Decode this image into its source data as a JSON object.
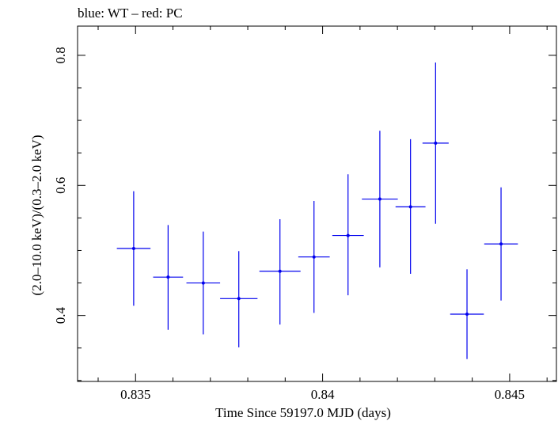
{
  "chart_data": {
    "type": "scatter",
    "title": "blue: WT – red: PC",
    "xlabel": "Time Since 59197.0 MJD (days)",
    "ylabel": "(2.0–10.0 keV)/(0.3–2.0 keV)",
    "xlim": [
      0.83345,
      0.84625
    ],
    "ylim": [
      0.2986,
      0.8449
    ],
    "x_ticks": [
      0.835,
      0.84,
      0.845
    ],
    "x_tick_labels": [
      "0.835",
      "0.84",
      "0.845"
    ],
    "x_minor_step": 0.001,
    "y_ticks": [
      0.4,
      0.6,
      0.8
    ],
    "y_tick_labels": [
      "0.4",
      "0.6",
      "0.8"
    ],
    "y_minor_step": 0.05,
    "grid": false,
    "series": [
      {
        "color": "#0000ee",
        "points": [
          {
            "x": 0.83495,
            "y": 0.503,
            "xerr": 0.00045,
            "ylo": 0.415,
            "yhi": 0.591
          },
          {
            "x": 0.83587,
            "y": 0.459,
            "xerr": 0.0004,
            "ylo": 0.378,
            "yhi": 0.539
          },
          {
            "x": 0.83681,
            "y": 0.45,
            "xerr": 0.00045,
            "ylo": 0.371,
            "yhi": 0.529
          },
          {
            "x": 0.83776,
            "y": 0.426,
            "xerr": 0.0005,
            "ylo": 0.351,
            "yhi": 0.499
          },
          {
            "x": 0.83886,
            "y": 0.468,
            "xerr": 0.00055,
            "ylo": 0.386,
            "yhi": 0.548
          },
          {
            "x": 0.83977,
            "y": 0.49,
            "xerr": 0.00042,
            "ylo": 0.404,
            "yhi": 0.576
          },
          {
            "x": 0.84068,
            "y": 0.523,
            "xerr": 0.00042,
            "ylo": 0.431,
            "yhi": 0.617
          },
          {
            "x": 0.84153,
            "y": 0.579,
            "xerr": 0.00048,
            "ylo": 0.474,
            "yhi": 0.684
          },
          {
            "x": 0.84235,
            "y": 0.567,
            "xerr": 0.0004,
            "ylo": 0.464,
            "yhi": 0.671
          },
          {
            "x": 0.84302,
            "y": 0.665,
            "xerr": 0.00035,
            "ylo": 0.541,
            "yhi": 0.789
          },
          {
            "x": 0.84386,
            "y": 0.402,
            "xerr": 0.00045,
            "ylo": 0.333,
            "yhi": 0.471
          },
          {
            "x": 0.84477,
            "y": 0.51,
            "xerr": 0.00045,
            "ylo": 0.423,
            "yhi": 0.597
          }
        ]
      }
    ]
  }
}
